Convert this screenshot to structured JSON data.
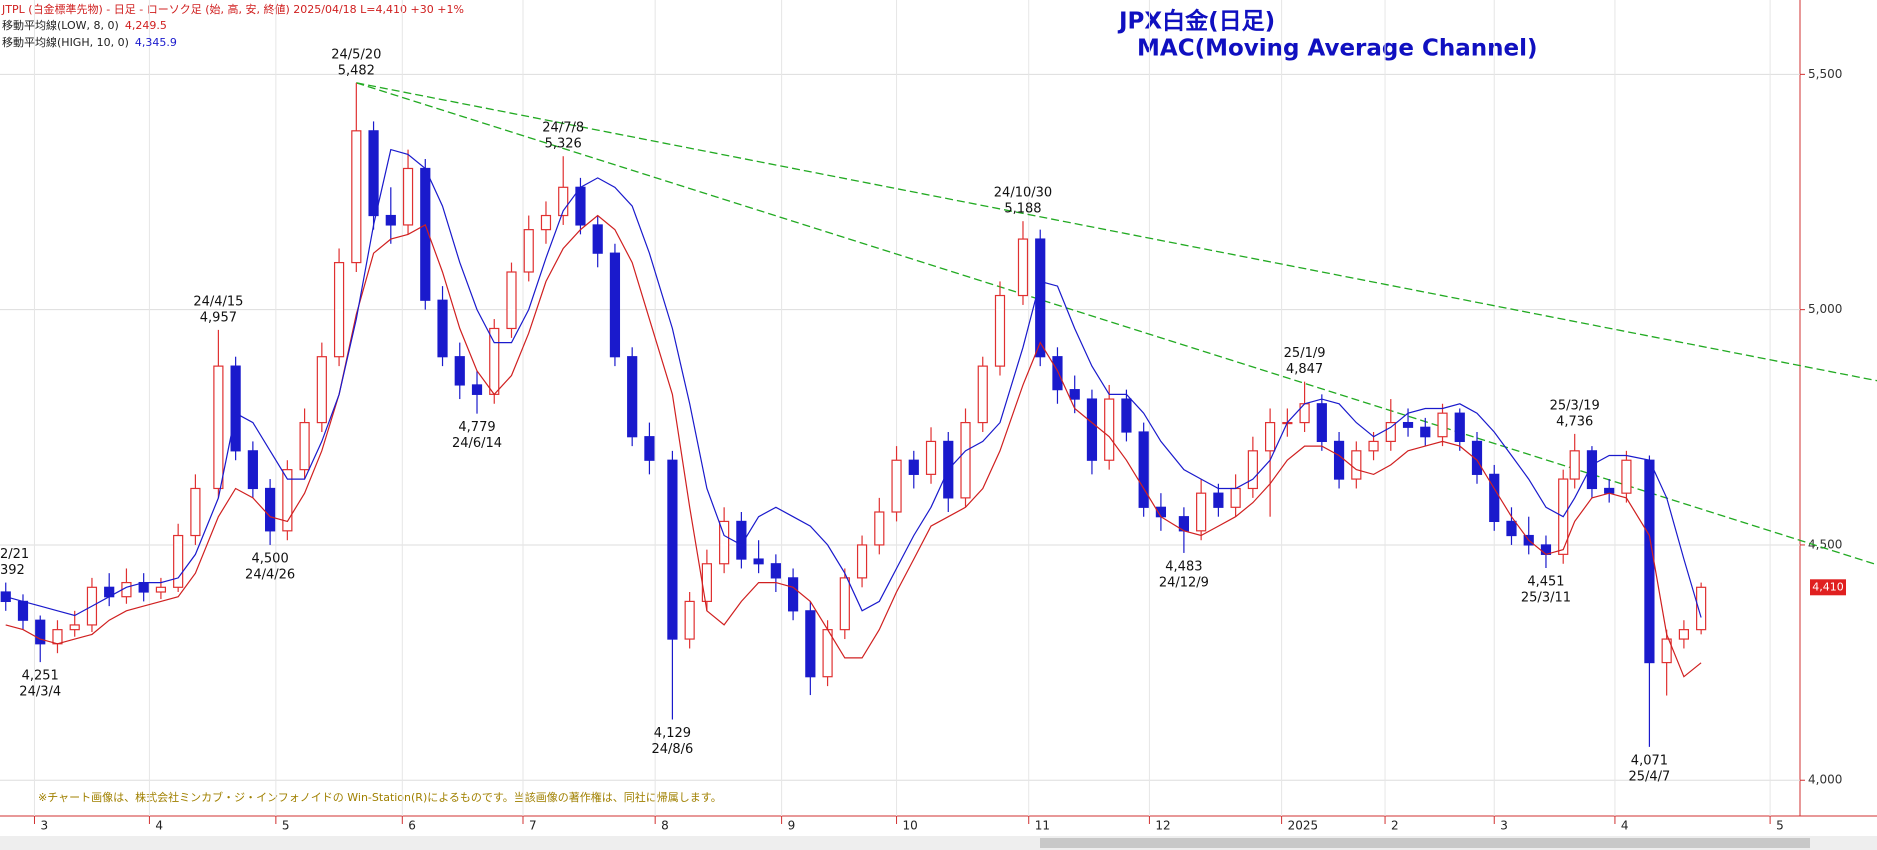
{
  "chart_data": {
    "type": "candlestick",
    "header": "JTPL (白金標準先物) - 日足 - ローソク足 (始, 高, 安, 終値)  2025/04/18 L=4,410 +30  +1%",
    "title": "JPX白金(日足)",
    "subtitle": "MAC(Moving Average Channel)",
    "note": "※チャート画像は、株式会社ミンカブ・ジ・インフォノイドの Win-Station(R)によるものです。当該画像の著作権は、同社に帰属します。",
    "last_price_label": "4,410",
    "up_color": "#e03030",
    "down_color": "#1a1acc",
    "x": [
      0,
      3,
      6,
      9,
      12,
      15,
      18,
      21,
      24,
      27,
      30,
      33,
      37,
      40,
      43,
      46,
      49,
      52,
      55,
      58,
      61,
      64,
      67,
      70,
      73,
      76,
      79,
      82,
      85,
      88,
      91,
      94,
      97,
      100,
      103,
      106,
      109,
      112,
      116,
      119,
      122,
      125,
      128,
      131,
      134,
      137,
      140,
      143,
      146,
      149,
      152,
      155,
      158,
      161,
      164,
      167,
      170,
      173,
      177,
      180,
      183,
      186,
      189,
      192,
      195,
      198,
      201,
      205,
      208,
      211,
      214,
      217,
      220,
      223,
      226,
      229,
      232,
      235,
      238,
      241,
      244,
      247,
      250,
      253,
      256,
      259,
      262,
      265,
      268,
      271,
      273,
      276,
      279,
      282,
      286,
      289,
      292,
      295
    ],
    "open": [
      4400,
      4380,
      4340,
      4290,
      4320,
      4330,
      4410,
      4390,
      4420,
      4400,
      4410,
      4520,
      4620,
      4880,
      4700,
      4620,
      4530,
      4660,
      4760,
      4900,
      5100,
      5380,
      5200,
      5180,
      5300,
      5020,
      4900,
      4840,
      4820,
      4960,
      5080,
      5170,
      5200,
      5260,
      5180,
      5120,
      4900,
      4730,
      4680,
      4300,
      4380,
      4460,
      4550,
      4470,
      4460,
      4430,
      4360,
      4220,
      4320,
      4430,
      4500,
      4570,
      4680,
      4650,
      4720,
      4600,
      4760,
      4880,
      5030,
      5150,
      4900,
      4830,
      4810,
      4680,
      4810,
      4740,
      4580,
      4560,
      4530,
      4610,
      4580,
      4620,
      4700,
      4760,
      4760,
      4800,
      4720,
      4640,
      4700,
      4720,
      4760,
      4750,
      4730,
      4780,
      4720,
      4650,
      4550,
      4520,
      4500,
      4480,
      4640,
      4700,
      4620,
      4610,
      4680,
      4250,
      4300,
      4320
    ],
    "high": [
      4420,
      4395,
      4350,
      4340,
      4360,
      4430,
      4440,
      4450,
      4440,
      4430,
      4545,
      4650,
      4957,
      4900,
      4720,
      4640,
      4680,
      4790,
      4930,
      5130,
      5482,
      5400,
      5260,
      5340,
      5320,
      5050,
      4930,
      4870,
      4980,
      5100,
      5200,
      5230,
      5326,
      5280,
      5200,
      5140,
      4920,
      4760,
      4700,
      4400,
      4490,
      4580,
      4570,
      4510,
      4480,
      4450,
      4380,
      4340,
      4450,
      4520,
      4600,
      4710,
      4700,
      4750,
      4740,
      4790,
      4900,
      5060,
      5188,
      5170,
      4920,
      4860,
      4830,
      4840,
      4830,
      4760,
      4610,
      4580,
      4640,
      4630,
      4650,
      4730,
      4790,
      4790,
      4847,
      4820,
      4740,
      4720,
      4740,
      4810,
      4790,
      4770,
      4800,
      4790,
      4740,
      4670,
      4580,
      4560,
      4520,
      4660,
      4736,
      4710,
      4640,
      4700,
      4690,
      4320,
      4340,
      4420
    ],
    "low": [
      4360,
      4320,
      4251,
      4270,
      4305,
      4315,
      4370,
      4375,
      4380,
      4385,
      4400,
      4500,
      4600,
      4680,
      4600,
      4500,
      4510,
      4640,
      4740,
      4880,
      5080,
      5170,
      5140,
      5160,
      5000,
      4880,
      4810,
      4779,
      4800,
      4940,
      5060,
      5140,
      5180,
      5160,
      5090,
      4880,
      4710,
      4650,
      4129,
      4280,
      4360,
      4440,
      4450,
      4440,
      4400,
      4340,
      4181,
      4200,
      4300,
      4410,
      4480,
      4550,
      4620,
      4630,
      4570,
      4580,
      4740,
      4860,
      5010,
      4880,
      4800,
      4780,
      4650,
      4660,
      4720,
      4560,
      4530,
      4483,
      4510,
      4560,
      4560,
      4600,
      4560,
      4730,
      4740,
      4700,
      4620,
      4620,
      4680,
      4700,
      4730,
      4710,
      4710,
      4700,
      4630,
      4530,
      4500,
      4480,
      4451,
      4460,
      4620,
      4600,
      4590,
      4590,
      4071,
      4180,
      4280,
      4310
    ],
    "close": [
      4380,
      4340,
      4290,
      4320,
      4330,
      4410,
      4390,
      4420,
      4400,
      4410,
      4520,
      4620,
      4880,
      4700,
      4620,
      4530,
      4660,
      4760,
      4900,
      5100,
      5380,
      5200,
      5180,
      5300,
      5020,
      4900,
      4840,
      4820,
      4960,
      5080,
      5170,
      5200,
      5260,
      5180,
      5120,
      4900,
      4730,
      4680,
      4300,
      4380,
      4460,
      4550,
      4470,
      4460,
      4430,
      4360,
      4220,
      4320,
      4430,
      4500,
      4570,
      4680,
      4650,
      4720,
      4600,
      4760,
      4880,
      5030,
      5150,
      4900,
      4830,
      4810,
      4680,
      4810,
      4740,
      4580,
      4560,
      4530,
      4610,
      4580,
      4620,
      4700,
      4760,
      4760,
      4800,
      4720,
      4640,
      4700,
      4720,
      4760,
      4750,
      4730,
      4780,
      4720,
      4650,
      4550,
      4520,
      4500,
      4480,
      4640,
      4700,
      4620,
      4610,
      4680,
      4250,
      4300,
      4320,
      4410
    ],
    "series": [
      {
        "name": "移動平均線(LOW, 8, 0)",
        "color": "#d02020",
        "last_value_label": "4,249.5",
        "values": [
          4330,
          4320,
          4300,
          4290,
          4300,
          4310,
          4340,
          4360,
          4370,
          4380,
          4390,
          4440,
          4560,
          4620,
          4600,
          4560,
          4550,
          4610,
          4700,
          4820,
          4990,
          5120,
          5150,
          5160,
          5180,
          5080,
          4960,
          4870,
          4820,
          4860,
          4950,
          5060,
          5130,
          5170,
          5200,
          5170,
          5100,
          4980,
          4820,
          4580,
          4360,
          4330,
          4380,
          4420,
          4420,
          4410,
          4380,
          4320,
          4260,
          4260,
          4320,
          4400,
          4470,
          4540,
          4560,
          4580,
          4620,
          4700,
          4840,
          4930,
          4870,
          4790,
          4760,
          4730,
          4680,
          4620,
          4560,
          4530,
          4520,
          4540,
          4560,
          4590,
          4630,
          4680,
          4710,
          4710,
          4690,
          4660,
          4650,
          4670,
          4700,
          4710,
          4720,
          4710,
          4680,
          4620,
          4560,
          4510,
          4480,
          4490,
          4550,
          4600,
          4610,
          4600,
          4520,
          4310,
          4220,
          4249.5
        ]
      },
      {
        "name": "移動平均線(HIGH, 10, 0)",
        "color": "#1a1acc",
        "last_value_label": "4,345.9",
        "values": [
          4390,
          4380,
          4370,
          4360,
          4350,
          4370,
          4390,
          4410,
          4420,
          4420,
          4430,
          4480,
          4600,
          4780,
          4760,
          4700,
          4640,
          4640,
          4720,
          4820,
          4980,
          5180,
          5340,
          5330,
          5300,
          5220,
          5100,
          5000,
          4930,
          4930,
          5000,
          5110,
          5210,
          5260,
          5280,
          5260,
          5220,
          5120,
          4960,
          4800,
          4620,
          4520,
          4500,
          4560,
          4580,
          4560,
          4540,
          4500,
          4440,
          4360,
          4380,
          4450,
          4520,
          4580,
          4660,
          4700,
          4720,
          4760,
          4920,
          5060,
          5050,
          4960,
          4880,
          4820,
          4820,
          4780,
          4720,
          4660,
          4640,
          4620,
          4620,
          4640,
          4680,
          4760,
          4800,
          4810,
          4800,
          4760,
          4730,
          4750,
          4780,
          4790,
          4790,
          4800,
          4780,
          4740,
          4690,
          4640,
          4580,
          4560,
          4600,
          4670,
          4690,
          4690,
          4680,
          4600,
          4470,
          4345.9
        ]
      }
    ],
    "trendline_color": "#22aa22",
    "trendlines": [
      {
        "x": [
          61,
          325.6
        ],
        "y": [
          5482,
          4849
        ]
      },
      {
        "x": [
          61,
          325.6
        ],
        "y": [
          5482,
          4458
        ]
      }
    ],
    "annotations": [
      {
        "x": 0,
        "side": "high",
        "lines": [
          "2/21",
          "392"
        ]
      },
      {
        "x": 6,
        "side": "low",
        "lines": [
          "4,251",
          "24/3/4"
        ]
      },
      {
        "x": 37,
        "side": "high",
        "lines": [
          "24/4/15",
          "4,957"
        ]
      },
      {
        "x": 46,
        "side": "low",
        "lines": [
          "4,500",
          "24/4/26"
        ]
      },
      {
        "x": 61,
        "side": "high",
        "lines": [
          "24/5/20",
          "5,482"
        ]
      },
      {
        "x": 82,
        "side": "low",
        "lines": [
          "4,779",
          "24/6/14"
        ]
      },
      {
        "x": 97,
        "side": "high",
        "lines": [
          "24/7/8",
          "5,326"
        ]
      },
      {
        "x": 116,
        "side": "low",
        "lines": [
          "4,129",
          "24/8/6"
        ]
      },
      {
        "x": 177,
        "side": "high",
        "lines": [
          "24/10/30",
          "5,188"
        ]
      },
      {
        "x": 205,
        "side": "low",
        "lines": [
          "4,483",
          "24/12/9"
        ]
      },
      {
        "x": 226,
        "side": "high",
        "lines": [
          "25/1/9",
          "4,847"
        ]
      },
      {
        "x": 268,
        "side": "low",
        "lines": [
          "4,451",
          "25/3/11"
        ]
      },
      {
        "x": 273,
        "side": "high",
        "lines": [
          "25/3/19",
          "4,736"
        ]
      },
      {
        "x": 286,
        "side": "low",
        "lines": [
          "4,071",
          "25/4/7"
        ]
      }
    ],
    "xlim": [
      -1,
      325.6
    ],
    "xticks": [
      {
        "value": 5,
        "label": "3"
      },
      {
        "value": 25,
        "label": "4"
      },
      {
        "value": 47,
        "label": "5"
      },
      {
        "value": 69,
        "label": "6"
      },
      {
        "value": 90,
        "label": "7"
      },
      {
        "value": 113,
        "label": "8"
      },
      {
        "value": 135,
        "label": "9"
      },
      {
        "value": 155,
        "label": "10"
      },
      {
        "value": 178,
        "label": "11"
      },
      {
        "value": 199,
        "label": "12"
      },
      {
        "value": 222,
        "label": "2025"
      },
      {
        "value": 240,
        "label": "2"
      },
      {
        "value": 259,
        "label": "3"
      },
      {
        "value": 280,
        "label": "4"
      },
      {
        "value": 307,
        "label": "5"
      }
    ],
    "ylim": [
      3924,
      5658
    ],
    "yticks": [
      {
        "value": 4000,
        "label": "4,000"
      },
      {
        "value": 4500,
        "label": "4,500"
      },
      {
        "value": 5000,
        "label": "5,000"
      },
      {
        "value": 5500,
        "label": "5,500"
      }
    ],
    "grid": true
  }
}
